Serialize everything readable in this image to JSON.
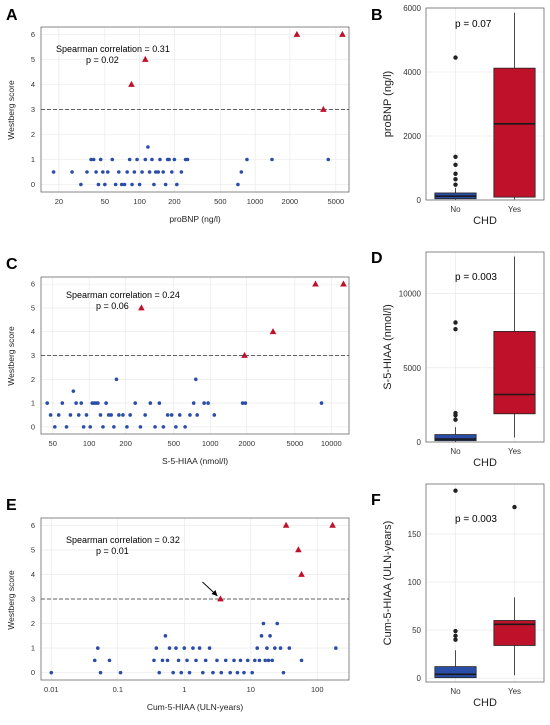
{
  "colors": {
    "point": "#2a4da8",
    "triangle": "#c0112a",
    "box_no": "#2a4da8",
    "box_yes": "#c0112a",
    "grid": "#e6e6e6"
  },
  "chart_data": [
    {
      "panel": "A",
      "type": "scatter",
      "xscale": "log",
      "xlabel": "proBNP (ng/l)",
      "ylabel": "Westberg score",
      "xlim": [
        14,
        6500
      ],
      "ylim": [
        -0.3,
        6.3
      ],
      "xticks": [
        20,
        50,
        100,
        200,
        500,
        1000,
        2000,
        5000
      ],
      "yticks": [
        0,
        1,
        2,
        3,
        4,
        5,
        6
      ],
      "hline": 3,
      "annotation": {
        "line1": "Spearman correlation =  0.31",
        "line2": "p = 0.02"
      },
      "points": [
        [
          18,
          0.5
        ],
        [
          26,
          0.5
        ],
        [
          31,
          0
        ],
        [
          35,
          0.5
        ],
        [
          38,
          1
        ],
        [
          40,
          1
        ],
        [
          42,
          0.5
        ],
        [
          44,
          0
        ],
        [
          46,
          1
        ],
        [
          48,
          0.5
        ],
        [
          50,
          0
        ],
        [
          53,
          0.5
        ],
        [
          58,
          1
        ],
        [
          62,
          0
        ],
        [
          66,
          0.5
        ],
        [
          70,
          0
        ],
        [
          74,
          0
        ],
        [
          78,
          0.5
        ],
        [
          82,
          1
        ],
        [
          86,
          0
        ],
        [
          90,
          0.5
        ],
        [
          95,
          1
        ],
        [
          100,
          0
        ],
        [
          105,
          0.5
        ],
        [
          112,
          1
        ],
        [
          118,
          1.5
        ],
        [
          122,
          0.5
        ],
        [
          128,
          1
        ],
        [
          133,
          0
        ],
        [
          138,
          0.5
        ],
        [
          145,
          0.5
        ],
        [
          150,
          1
        ],
        [
          160,
          0.5
        ],
        [
          168,
          0
        ],
        [
          175,
          1
        ],
        [
          180,
          1
        ],
        [
          190,
          0.5
        ],
        [
          200,
          1
        ],
        [
          210,
          0
        ],
        [
          230,
          0.5
        ],
        [
          250,
          1
        ],
        [
          260,
          1
        ],
        [
          710,
          0
        ],
        [
          760,
          0.5
        ],
        [
          850,
          1
        ],
        [
          1400,
          1
        ],
        [
          4300,
          1
        ]
      ],
      "triangles": [
        [
          85,
          4
        ],
        [
          112,
          5
        ],
        [
          2300,
          6
        ],
        [
          3900,
          3
        ],
        [
          5700,
          6
        ]
      ]
    },
    {
      "panel": "B",
      "type": "box",
      "categories": [
        "No",
        "Yes"
      ],
      "xlabel": "CHD",
      "ylabel": "proBNP (ng/l)",
      "ylim": [
        0,
        6000
      ],
      "yticks": [
        0,
        2000,
        4000,
        6000
      ],
      "annotation": "p = 0.07",
      "boxes": [
        {
          "q1": 40,
          "median": 120,
          "q3": 220,
          "wlow": 10,
          "whigh": 380,
          "outliers": [
            480,
            650,
            820,
            1100,
            1350,
            4450
          ]
        },
        {
          "q1": 90,
          "median": 2380,
          "q3": 4120,
          "wlow": 20,
          "whigh": 5850,
          "outliers": []
        }
      ]
    },
    {
      "panel": "C",
      "type": "scatter",
      "xscale": "log",
      "xlabel": "S-5-HIAA (nmol/l)",
      "ylabel": "Westberg score",
      "xlim": [
        40,
        14000
      ],
      "ylim": [
        -0.3,
        6.3
      ],
      "xticks": [
        50,
        100,
        200,
        500,
        1000,
        2000,
        5000,
        10000
      ],
      "yticks": [
        0,
        1,
        2,
        3,
        4,
        5,
        6
      ],
      "hline": 3,
      "annotation": {
        "line1": "Spearman correlation =  0.24",
        "line2": "p = 0.06"
      },
      "points": [
        [
          45,
          1
        ],
        [
          48,
          0.5
        ],
        [
          52,
          0
        ],
        [
          56,
          0.5
        ],
        [
          60,
          1
        ],
        [
          65,
          0
        ],
        [
          70,
          0.5
        ],
        [
          74,
          1.5
        ],
        [
          78,
          1
        ],
        [
          82,
          0.5
        ],
        [
          86,
          1
        ],
        [
          90,
          0
        ],
        [
          95,
          0.5
        ],
        [
          102,
          0
        ],
        [
          106,
          1
        ],
        [
          110,
          1
        ],
        [
          114,
          1
        ],
        [
          118,
          1
        ],
        [
          124,
          0.5
        ],
        [
          130,
          0
        ],
        [
          138,
          1
        ],
        [
          145,
          0.5
        ],
        [
          152,
          0.5
        ],
        [
          160,
          0
        ],
        [
          168,
          2
        ],
        [
          176,
          0.5
        ],
        [
          190,
          0.5
        ],
        [
          205,
          0
        ],
        [
          218,
          0.5
        ],
        [
          240,
          1
        ],
        [
          265,
          0
        ],
        [
          290,
          0.5
        ],
        [
          320,
          1
        ],
        [
          350,
          0
        ],
        [
          380,
          1
        ],
        [
          410,
          0
        ],
        [
          445,
          0.5
        ],
        [
          480,
          0.5
        ],
        [
          520,
          0
        ],
        [
          560,
          0.5
        ],
        [
          620,
          0
        ],
        [
          680,
          0.5
        ],
        [
          730,
          1
        ],
        [
          760,
          2
        ],
        [
          780,
          0.5
        ],
        [
          890,
          1
        ],
        [
          960,
          1
        ],
        [
          1080,
          0.5
        ],
        [
          1850,
          1
        ],
        [
          1950,
          1
        ],
        [
          8300,
          1
        ]
      ],
      "triangles": [
        [
          270,
          5
        ],
        [
          1920,
          3
        ],
        [
          3300,
          4
        ],
        [
          7400,
          6
        ],
        [
          12600,
          6
        ]
      ]
    },
    {
      "panel": "D",
      "type": "box",
      "categories": [
        "No",
        "Yes"
      ],
      "xlabel": "CHD",
      "ylabel": "S-5-HIAA (nmol/l)",
      "ylim": [
        0,
        12800
      ],
      "yticks": [
        0,
        5000,
        10000
      ],
      "annotation": "p = 0.003",
      "boxes": [
        {
          "q1": 90,
          "median": 200,
          "q3": 500,
          "wlow": 10,
          "whigh": 1000,
          "outliers": [
            1500,
            1800,
            1950,
            7600,
            8050
          ]
        },
        {
          "q1": 1900,
          "median": 3200,
          "q3": 7450,
          "wlow": 300,
          "whigh": 12500,
          "outliers": []
        }
      ]
    },
    {
      "panel": "E",
      "type": "scatter",
      "xscale": "log",
      "xlabel": "Cum-5-HIAA (ULN-years)",
      "ylabel": "Westberg score",
      "xlim": [
        0.007,
        300
      ],
      "ylim": [
        -0.3,
        6.3
      ],
      "xticks": [
        0.01,
        0.1,
        1,
        10,
        100
      ],
      "xticklabels": [
        "0.01",
        "0.1",
        "1",
        "10",
        "100"
      ],
      "yticks": [
        0,
        1,
        2,
        3,
        4,
        5,
        6
      ],
      "hline": 3,
      "annotation": {
        "line1": "Spearman correlation =  0.32",
        "line2": "p = 0.01"
      },
      "arrow_to": [
        3.5,
        3
      ],
      "points": [
        [
          0.01,
          0
        ],
        [
          0.045,
          0.5
        ],
        [
          0.05,
          1
        ],
        [
          0.055,
          0
        ],
        [
          0.075,
          0.5
        ],
        [
          0.11,
          0
        ],
        [
          0.35,
          0.5
        ],
        [
          0.38,
          1
        ],
        [
          0.42,
          0
        ],
        [
          0.47,
          0.5
        ],
        [
          0.52,
          1.5
        ],
        [
          0.56,
          0.5
        ],
        [
          0.6,
          1
        ],
        [
          0.68,
          0
        ],
        [
          0.75,
          1
        ],
        [
          0.82,
          0.5
        ],
        [
          0.9,
          0
        ],
        [
          1.0,
          1
        ],
        [
          1.1,
          0.5
        ],
        [
          1.2,
          0
        ],
        [
          1.35,
          1
        ],
        [
          1.5,
          0.5
        ],
        [
          1.7,
          1
        ],
        [
          1.9,
          0
        ],
        [
          2.1,
          0.5
        ],
        [
          2.4,
          1
        ],
        [
          2.7,
          0
        ],
        [
          3.1,
          0.5
        ],
        [
          3.6,
          0
        ],
        [
          4.2,
          0.5
        ],
        [
          4.9,
          0
        ],
        [
          5.6,
          0.5
        ],
        [
          6.3,
          0
        ],
        [
          7,
          0.5
        ],
        [
          7.9,
          0
        ],
        [
          9,
          0.5
        ],
        [
          10.5,
          0
        ],
        [
          11.5,
          0.5
        ],
        [
          12.5,
          1
        ],
        [
          13.5,
          0.5
        ],
        [
          14.5,
          1.5
        ],
        [
          15.5,
          2
        ],
        [
          16.5,
          0.5
        ],
        [
          17.5,
          1
        ],
        [
          18.5,
          0.5
        ],
        [
          19.5,
          1.5
        ],
        [
          21,
          0.5
        ],
        [
          23,
          1
        ],
        [
          25,
          2
        ],
        [
          28,
          1
        ],
        [
          31,
          0
        ],
        [
          38,
          1
        ],
        [
          58,
          0.5
        ],
        [
          190,
          1
        ]
      ],
      "triangles": [
        [
          3.5,
          3
        ],
        [
          34,
          6
        ],
        [
          52,
          5
        ],
        [
          58,
          4
        ],
        [
          170,
          6
        ]
      ]
    },
    {
      "panel": "F",
      "type": "box",
      "categories": [
        "No",
        "Yes"
      ],
      "xlabel": "CHD",
      "ylabel": "Cum-5-HIAA (ULN-years)",
      "ylim": [
        -4,
        202
      ],
      "yticks": [
        0,
        50,
        100,
        150
      ],
      "annotation": "p = 0.003",
      "boxes": [
        {
          "q1": 0.5,
          "median": 4,
          "q3": 12,
          "wlow": 0,
          "whigh": 29,
          "outliers": [
            40,
            44,
            49,
            195
          ]
        },
        {
          "q1": 34,
          "median": 56,
          "q3": 60,
          "wlow": 3,
          "whigh": 84,
          "outliers": [
            178
          ]
        }
      ]
    }
  ]
}
